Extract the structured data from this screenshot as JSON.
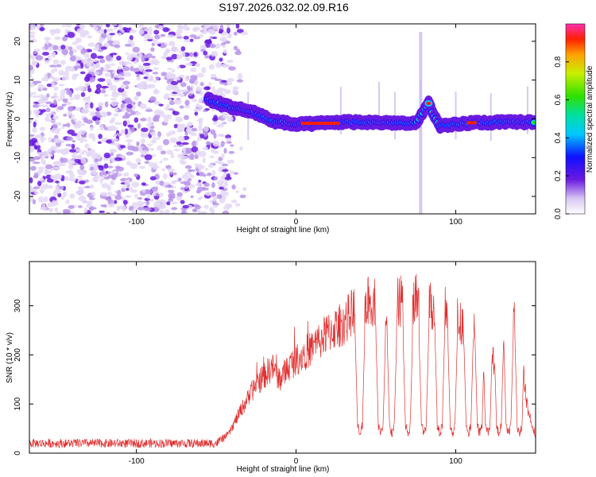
{
  "title": "S197.2026.032.02.09.R16",
  "chart_data": [
    {
      "type": "heatmap",
      "xlabel": "Height of straight line (km)",
      "ylabel": "Frequency (Hz)",
      "xlim": [
        -167,
        150
      ],
      "ylim": [
        -24.5,
        24.5
      ],
      "xticks": [
        -100,
        0,
        100
      ],
      "yticks": [
        -20,
        -10,
        0,
        10,
        20
      ],
      "colorbar": {
        "label": "Normalized spectral amplitude",
        "range": [
          0,
          1
        ],
        "ticks": [
          "0.0",
          "0.2",
          "0.4",
          "0.6",
          "0.8"
        ],
        "tick_values": [
          0,
          0.2,
          0.4,
          0.6,
          0.8
        ]
      },
      "track": {
        "description_points": [
          {
            "x": -55,
            "y": 5
          },
          {
            "x": -45,
            "y": 3.5
          },
          {
            "x": -35,
            "y": 2.5
          },
          {
            "x": -25,
            "y": 1.5
          },
          {
            "x": -15,
            "y": -0.5
          },
          {
            "x": 0,
            "y": -1.5
          },
          {
            "x": 30,
            "y": -0.8
          },
          {
            "x": 60,
            "y": -1
          },
          {
            "x": 75,
            "y": -1.3
          },
          {
            "x": 83,
            "y": 4
          },
          {
            "x": 90,
            "y": -2
          },
          {
            "x": 110,
            "y": -1
          },
          {
            "x": 150,
            "y": -0.8
          }
        ]
      }
    },
    {
      "type": "line",
      "xlabel": "Height of straight line (km)",
      "ylabel": "SNR (10 * v/v)",
      "xlim": [
        -167,
        150
      ],
      "ylim": [
        0,
        390
      ],
      "xticks": [
        -100,
        0,
        100
      ],
      "yticks": [
        0,
        100,
        200,
        300
      ],
      "series": [
        {
          "name": "SNR",
          "color": "#e03030",
          "envelope_x": [
            -167,
            -50,
            -42,
            -35,
            -25,
            -15,
            -10,
            -5,
            0,
            10,
            20,
            30,
            38,
            40,
            50,
            60,
            70,
            80,
            90,
            100,
            110,
            120,
            125,
            130,
            135,
            140,
            145,
            150
          ],
          "envelope_y": [
            20,
            20,
            40,
            85,
            140,
            175,
            150,
            175,
            190,
            215,
            245,
            265,
            300,
            305,
            310,
            305,
            315,
            310,
            300,
            275,
            250,
            205,
            185,
            225,
            275,
            250,
            90,
            35
          ],
          "dip_centers_x": [
            40,
            53,
            60,
            70,
            80,
            90,
            98,
            108,
            115,
            120,
            127,
            133,
            140
          ],
          "dip_level": 40
        }
      ]
    }
  ]
}
